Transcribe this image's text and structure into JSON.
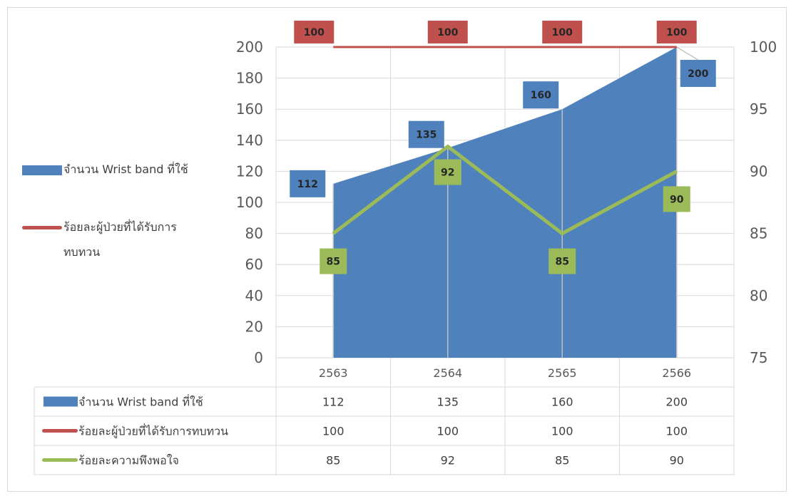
{
  "chart_data": {
    "type": "area",
    "categories": [
      "2563",
      "2564",
      "2565",
      "2566"
    ],
    "series": [
      {
        "name": "จำนวน Wrist band ที่ใช้",
        "type": "area",
        "axis": "left",
        "color": "#4f81bd",
        "values": [
          112,
          135,
          160,
          200
        ]
      },
      {
        "name": "ร้อยละผู้ป่วยที่ได้รับการทบทวน",
        "type": "line",
        "axis": "right",
        "color": "#c0504d",
        "values": [
          100,
          100,
          100,
          100
        ]
      },
      {
        "name": "ร้อยละความพึงพอใจ",
        "type": "line",
        "axis": "right",
        "color": "#9bbb59",
        "values": [
          85,
          92,
          85,
          90
        ]
      }
    ],
    "y_left": {
      "min": 0,
      "max": 200,
      "step": 20,
      "ticks": [
        "0",
        "20",
        "40",
        "60",
        "80",
        "100",
        "120",
        "140",
        "160",
        "180",
        "200"
      ]
    },
    "y_right": {
      "min": 75,
      "max": 100,
      "step": 5,
      "ticks": [
        "75",
        "80",
        "85",
        "90",
        "95",
        "100"
      ]
    },
    "data_labels": true,
    "legend": "left",
    "data_table": true,
    "legend_items": [
      {
        "label": "จำนวน Wrist band ที่ใช้",
        "label_line1": "จำนวน Wrist band ที่ใช้",
        "label_line2": "",
        "marker": "square",
        "color": "#4f81bd"
      },
      {
        "label": "ร้อยละผู้ป่วยที่ได้รับการทบทวน",
        "label_line1": "ร้อยละผู้ป่วยที่ได้รับการ",
        "label_line2": "ทบทวน",
        "marker": "line",
        "color": "#c0504d"
      }
    ],
    "table_rows": [
      {
        "label": "จำนวน Wrist band ที่ใช้",
        "marker": "square",
        "color": "#4f81bd",
        "values": [
          "112",
          "135",
          "160",
          "200"
        ]
      },
      {
        "label": "ร้อยละผู้ป่วยที่ได้รับการทบทวน",
        "marker": "line",
        "color": "#c0504d",
        "values": [
          "100",
          "100",
          "100",
          "100"
        ]
      },
      {
        "label": "ร้อยละความพึงพอใจ",
        "marker": "line",
        "color": "#9bbb59",
        "values": [
          "85",
          "92",
          "85",
          "90"
        ]
      }
    ]
  }
}
